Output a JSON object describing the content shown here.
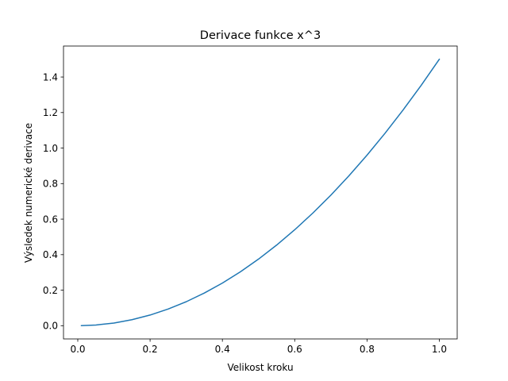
{
  "chart_data": {
    "type": "line",
    "title": "Derivace funkce x^3",
    "xlabel": "Velikost kroku",
    "ylabel": "Výsledek numerické derivace",
    "xlim": [
      -0.0395,
      1.0495
    ],
    "ylim": [
      -0.0745,
      1.5745
    ],
    "xticks": [
      0.0,
      0.2,
      0.4,
      0.6,
      0.8,
      1.0
    ],
    "xtick_labels": [
      "0.0",
      "0.2",
      "0.4",
      "0.6",
      "0.8",
      "1.0"
    ],
    "yticks": [
      0.0,
      0.2,
      0.4,
      0.6,
      0.8,
      1.0,
      1.2,
      1.4
    ],
    "ytick_labels": [
      "0.0",
      "0.2",
      "0.4",
      "0.6",
      "0.8",
      "1.0",
      "1.2",
      "1.4"
    ],
    "grid": false,
    "legend": "none",
    "series": [
      {
        "color": "#1f77b4",
        "x": [
          0.01,
          0.05,
          0.1,
          0.15,
          0.2,
          0.25,
          0.3,
          0.35,
          0.4,
          0.45,
          0.5,
          0.55,
          0.6,
          0.65,
          0.7,
          0.75,
          0.8,
          0.85,
          0.9,
          0.95,
          1.0
        ],
        "y": [
          0.0002,
          0.0038,
          0.015,
          0.0338,
          0.06,
          0.0938,
          0.135,
          0.1838,
          0.24,
          0.3038,
          0.375,
          0.4538,
          0.54,
          0.6338,
          0.735,
          0.8438,
          0.96,
          1.0838,
          1.215,
          1.3538,
          1.5
        ]
      }
    ]
  }
}
